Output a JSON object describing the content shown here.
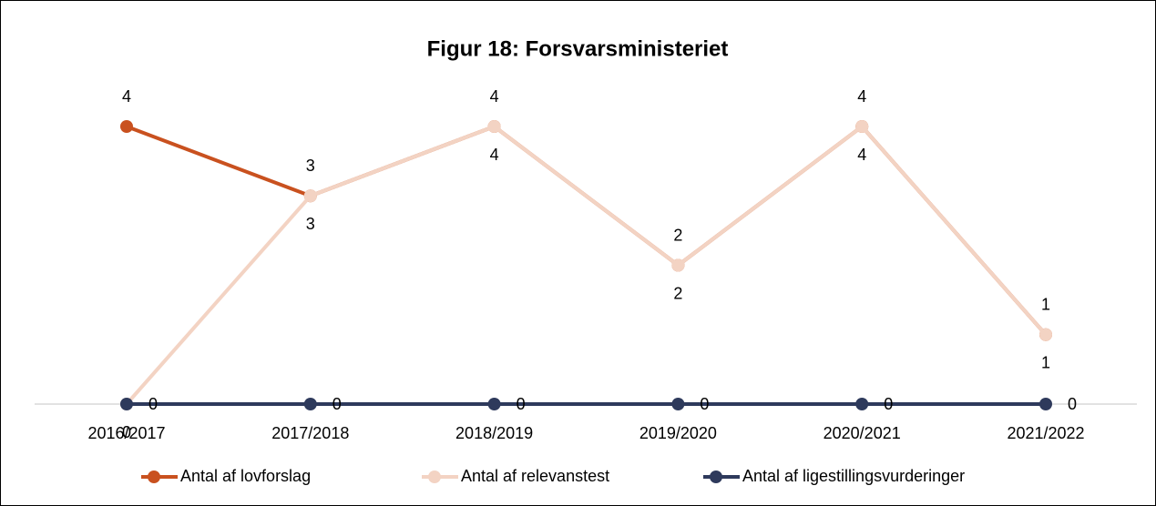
{
  "chart_data": {
    "type": "line",
    "title": "Figur 18: Forsvarsministeriet",
    "categories": [
      "2016/2017",
      "2017/2018",
      "2018/2019",
      "2019/2020",
      "2020/2021",
      "2021/2022"
    ],
    "series": [
      {
        "name": "Antal af lovforslag",
        "color": "#c9511f",
        "values": [
          4,
          3,
          4,
          2,
          4,
          1
        ]
      },
      {
        "name": "Antal af relevanstest",
        "color": "#f3d3c3",
        "values": [
          0,
          3,
          4,
          2,
          4,
          1
        ]
      },
      {
        "name": "Antal af ligestillingsvurderinger",
        "color": "#2e3a5c",
        "values": [
          0,
          0,
          0,
          0,
          0,
          0
        ]
      }
    ],
    "legend": "bottom"
  }
}
